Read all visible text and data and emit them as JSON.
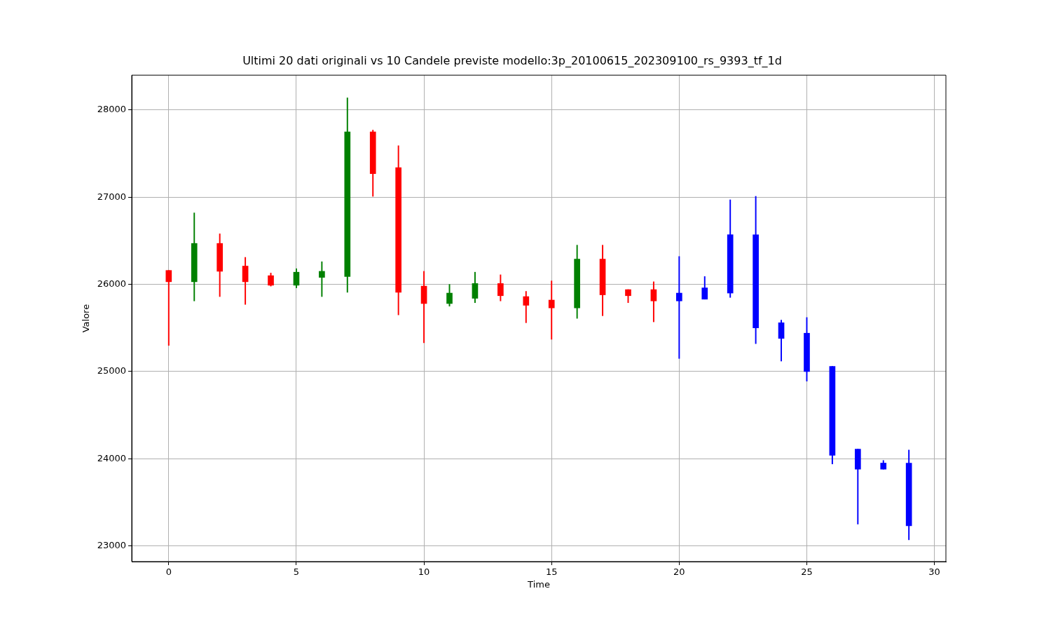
{
  "chart_data": {
    "type": "candlestick",
    "title": "Ultimi 20 dati originali vs 10 Candele previste modello:3p_20100615_202309100_rs_9393_tf_1d",
    "xlabel": "Time",
    "ylabel": "Valore",
    "x": [
      0,
      1,
      2,
      3,
      4,
      5,
      6,
      7,
      8,
      9,
      10,
      11,
      12,
      13,
      14,
      15,
      16,
      17,
      18,
      19,
      20,
      21,
      22,
      23,
      24,
      25,
      26,
      27,
      28,
      29
    ],
    "ohlc": [
      [
        26160,
        26160,
        25300,
        26030
      ],
      [
        26030,
        26820,
        25810,
        26470
      ],
      [
        26470,
        26580,
        25860,
        26150
      ],
      [
        26210,
        26310,
        25770,
        26030
      ],
      [
        26100,
        26130,
        25980,
        25990
      ],
      [
        25990,
        26180,
        25960,
        26140
      ],
      [
        26080,
        26260,
        25860,
        26150
      ],
      [
        26090,
        28140,
        25910,
        27750
      ],
      [
        27750,
        27770,
        27010,
        27270
      ],
      [
        27340,
        27590,
        25650,
        25910
      ],
      [
        25980,
        26150,
        25330,
        25780
      ],
      [
        25780,
        26000,
        25750,
        25900
      ],
      [
        25840,
        26140,
        25790,
        26010
      ],
      [
        26010,
        26110,
        25810,
        25870
      ],
      [
        25860,
        25920,
        25560,
        25760
      ],
      [
        25820,
        26040,
        25370,
        25730
      ],
      [
        25730,
        26450,
        25610,
        26290
      ],
      [
        26290,
        26450,
        25640,
        25880
      ],
      [
        25940,
        25940,
        25790,
        25870
      ],
      [
        25940,
        26030,
        25570,
        25810
      ],
      [
        25900,
        26320,
        25150,
        25810
      ],
      [
        25830,
        26090,
        25830,
        25960
      ],
      [
        25900,
        26970,
        25850,
        26570
      ],
      [
        26570,
        27010,
        25320,
        25500
      ],
      [
        25560,
        25590,
        25120,
        25380
      ],
      [
        25440,
        25620,
        24890,
        25000
      ],
      [
        25060,
        25060,
        23940,
        24040
      ],
      [
        24110,
        24110,
        23250,
        23880
      ],
      [
        23950,
        23980,
        23880,
        23880
      ],
      [
        23950,
        24100,
        23070,
        23230
      ]
    ],
    "colors": [
      "#ff0000",
      "#008000",
      "#ff0000",
      "#ff0000",
      "#ff0000",
      "#008000",
      "#008000",
      "#008000",
      "#ff0000",
      "#ff0000",
      "#ff0000",
      "#008000",
      "#008000",
      "#ff0000",
      "#ff0000",
      "#ff0000",
      "#008000",
      "#ff0000",
      "#ff0000",
      "#ff0000",
      "#0000ff",
      "#0000ff",
      "#0000ff",
      "#0000ff",
      "#0000ff",
      "#0000ff",
      "#0000ff",
      "#0000ff",
      "#0000ff",
      "#0000ff"
    ],
    "xlim": [
      -1.45,
      30.45
    ],
    "xticks": [
      0,
      5,
      10,
      15,
      20,
      25,
      30
    ],
    "ylim": [
      22820,
      28400
    ],
    "yticks": [
      23000,
      24000,
      25000,
      26000,
      27000,
      28000
    ],
    "grid": true
  }
}
